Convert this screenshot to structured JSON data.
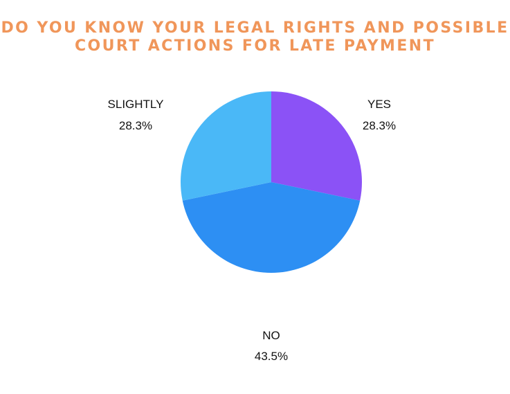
{
  "title_line1": "DO YOU KNOW YOUR LEGAL RIGHTS AND POSSIBLE",
  "title_line2": "COURT ACTIONS FOR LATE PAYMENT",
  "title_color": "#f0965a",
  "chart_data": {
    "type": "pie",
    "title": "DO YOU KNOW YOUR LEGAL RIGHTS AND POSSIBLE COURT ACTIONS FOR LATE PAYMENT",
    "slices": [
      {
        "label": "YES",
        "value": 28.3,
        "display": "28.3%",
        "color": "#8b52f6"
      },
      {
        "label": "NO",
        "value": 43.5,
        "display": "43.5%",
        "color": "#2d8ff3"
      },
      {
        "label": "SLIGHTLY",
        "value": 28.3,
        "display": "28.3%",
        "color": "#4ab8f7"
      }
    ]
  }
}
